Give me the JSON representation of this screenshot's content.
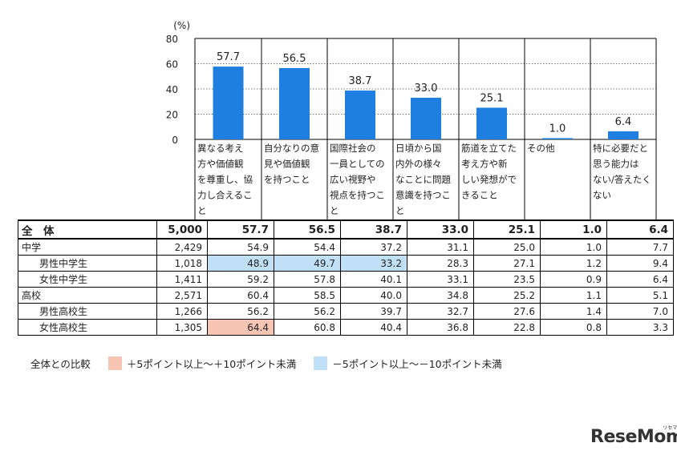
{
  "chart_data": {
    "type": "bar",
    "unit_label": "(%)",
    "y_ticks": [
      "0",
      "20",
      "40",
      "60",
      "80"
    ],
    "ylim": [
      0,
      80
    ],
    "color": "#1f7fe0",
    "categories": [
      "異なる考え方や価値観を尊重し、協力し合えること",
      "自分なりの意見や価値観を持つこと",
      "国際社会の一員としての広い視野や視点を持つこと",
      "日頃から国内外の様々なことに問題意識を持つこと",
      "筋道を立てた考え方や新しい発想ができること",
      "その他",
      "特に必要だと思う能力はない/答えたくない"
    ],
    "category_lines": [
      [
        "異なる考え",
        "方や価値観",
        "を尊重し、協",
        "力し合えるこ",
        "と"
      ],
      [
        "自分なりの意",
        "見や価値観",
        "を持つこと"
      ],
      [
        "国際社会の",
        "一員としての",
        "広い視野や",
        "視点を持つこ",
        "と"
      ],
      [
        "日頃から国",
        "内外の様々",
        "なことに問題",
        "意識を持つこ",
        "と"
      ],
      [
        "筋道を立てた",
        "考え方や新",
        "しい発想がで",
        "きること"
      ],
      [
        "その他"
      ],
      [
        "特に必要だと",
        "思う能力は",
        "ない/答えたく",
        "ない"
      ]
    ],
    "values": [
      57.7,
      56.5,
      38.7,
      33.0,
      25.1,
      1.0,
      6.4
    ],
    "value_labels": [
      "57.7",
      "56.5",
      "38.7",
      "33.0",
      "25.1",
      "1.0",
      "6.4"
    ]
  },
  "table": {
    "rows": [
      {
        "label": "全　体",
        "n": "5,000",
        "values": [
          "57.7",
          "56.5",
          "38.7",
          "33.0",
          "25.1",
          "1.0",
          "6.4"
        ],
        "total": true,
        "indent": false,
        "hl": [
          "",
          "",
          "",
          "",
          "",
          "",
          ""
        ]
      },
      {
        "label": "中学",
        "n": "2,429",
        "values": [
          "54.9",
          "54.4",
          "37.2",
          "31.1",
          "25.0",
          "1.0",
          "7.7"
        ],
        "total": false,
        "indent": false,
        "hl": [
          "",
          "",
          "",
          "",
          "",
          "",
          ""
        ]
      },
      {
        "label": "男性中学生",
        "n": "1,018",
        "values": [
          "48.9",
          "49.7",
          "33.2",
          "28.3",
          "27.1",
          "1.2",
          "9.4"
        ],
        "total": false,
        "indent": true,
        "hl": [
          "neg",
          "neg",
          "neg",
          "",
          "",
          "",
          ""
        ]
      },
      {
        "label": "女性中学生",
        "n": "1,411",
        "values": [
          "59.2",
          "57.8",
          "40.1",
          "33.1",
          "23.5",
          "0.9",
          "6.4"
        ],
        "total": false,
        "indent": true,
        "hl": [
          "",
          "",
          "",
          "",
          "",
          "",
          ""
        ]
      },
      {
        "label": "高校",
        "n": "2,571",
        "values": [
          "60.4",
          "58.5",
          "40.0",
          "34.8",
          "25.2",
          "1.1",
          "5.1"
        ],
        "total": false,
        "indent": false,
        "hl": [
          "",
          "",
          "",
          "",
          "",
          "",
          ""
        ]
      },
      {
        "label": "男性高校生",
        "n": "1,266",
        "values": [
          "56.2",
          "56.2",
          "39.7",
          "32.7",
          "27.6",
          "1.4",
          "7.0"
        ],
        "total": false,
        "indent": true,
        "hl": [
          "",
          "",
          "",
          "",
          "",
          "",
          ""
        ]
      },
      {
        "label": "女性高校生",
        "n": "1,305",
        "values": [
          "64.4",
          "60.8",
          "40.4",
          "36.8",
          "22.8",
          "0.8",
          "3.3"
        ],
        "total": false,
        "indent": true,
        "hl": [
          "pos",
          "",
          "",
          "",
          "",
          "",
          ""
        ]
      }
    ]
  },
  "legend": {
    "title": "全体との比較",
    "pos_label": "＋5ポイント以上～＋10ポイント未満",
    "neg_label": "－5ポイント以上～－10ポイント未満",
    "pos_color": "#f8c5b5",
    "neg_color": "#bfe0f6"
  },
  "logo": {
    "text": "ReseMom",
    "sub": "リセマム"
  }
}
